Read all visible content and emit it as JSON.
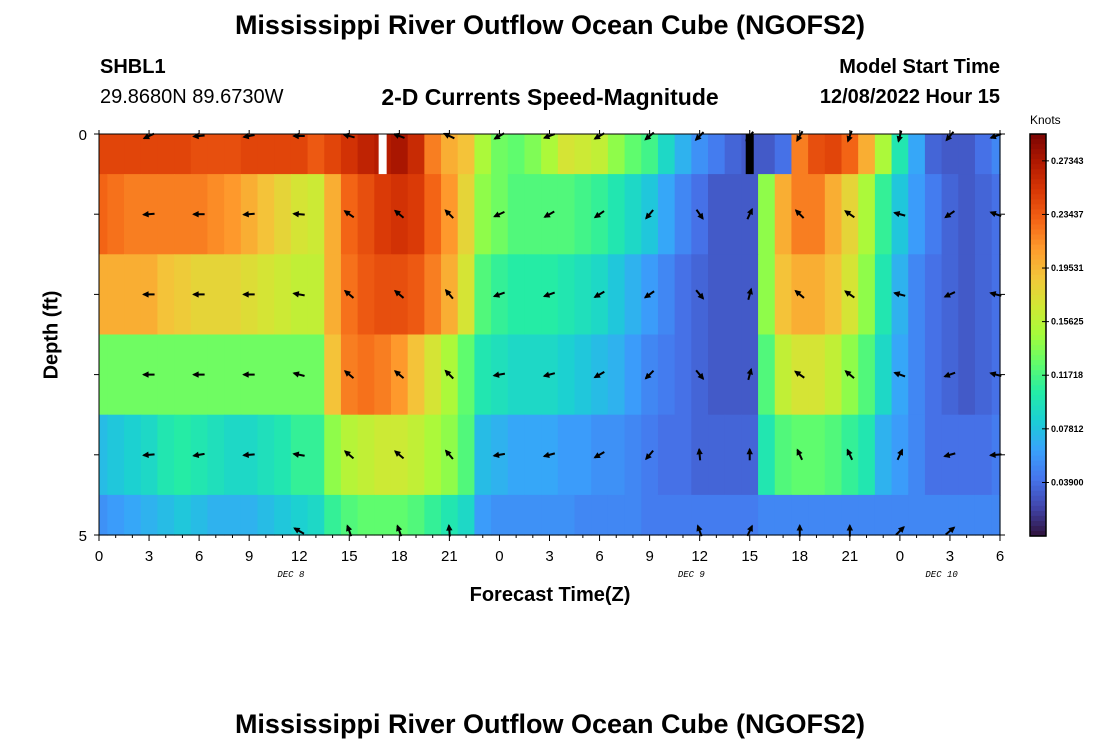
{
  "header": {
    "title": "Mississippi River Outflow Ocean Cube (NGOFS2)",
    "station_id": "SHBL1",
    "coordinates": "29.8680N  89.6730W",
    "plot_subtitle": "2-D Currents Speed-Magnitude",
    "model_start_label": "Model Start Time",
    "model_start_value": "12/08/2022 Hour 15"
  },
  "footer": {
    "title": "Mississippi River Outflow Ocean Cube (NGOFS2)"
  },
  "chart_data": {
    "type": "heatmap",
    "title": "2-D Currents Speed-Magnitude",
    "xlabel": "Forecast Time(Z)",
    "ylabel": "Depth (ft)",
    "colorbar_label": "Knots",
    "x_tick_labels": [
      "0",
      "3",
      "6",
      "9",
      "12",
      "15",
      "18",
      "21",
      "0",
      "3",
      "6",
      "9",
      "12",
      "15",
      "18",
      "21",
      "0",
      "3",
      "6"
    ],
    "x_day_labels": [
      {
        "label": "DEC 8",
        "hour": 11.5
      },
      {
        "label": "DEC 9",
        "hour": 35.5
      },
      {
        "label": "DEC 10",
        "hour": 50.5
      }
    ],
    "y_tick_labels": [
      {
        "depth": 0,
        "label": "0"
      },
      {
        "depth": 5,
        "label": "5"
      }
    ],
    "depth_range": [
      0,
      5
    ],
    "hour_range": [
      0,
      54
    ],
    "colorbar_range": [
      0.0,
      0.293
    ],
    "colorbar_ticks": [
      "0.03900",
      "0.07812",
      "0.11718",
      "0.15625",
      "0.19531",
      "0.23437",
      "0.27343"
    ],
    "colormap": [
      "#30123b",
      "#4145ab",
      "#4675ed",
      "#39a2fc",
      "#1bcfd4",
      "#24eca6",
      "#61fc6c",
      "#a4fc3b",
      "#d1e834",
      "#f3c63a",
      "#fe9b2d",
      "#f36315",
      "#d93806",
      "#b11901",
      "#7a0403"
    ],
    "hours": [
      0,
      1,
      2,
      3,
      4,
      5,
      6,
      7,
      8,
      9,
      10,
      11,
      12,
      13,
      14,
      15,
      16,
      17,
      18,
      19,
      20,
      21,
      22,
      23,
      24,
      25,
      26,
      27,
      28,
      29,
      30,
      31,
      32,
      33,
      34,
      35,
      36,
      37,
      38,
      39,
      40,
      41,
      42,
      43,
      44,
      45,
      46,
      47,
      48,
      49,
      50,
      51,
      52,
      53,
      54
    ],
    "depth_bins": [
      {
        "top": 0.0,
        "bottom": 0.5,
        "speeds": [
          0.245,
          0.245,
          0.245,
          0.245,
          0.245,
          0.245,
          0.24,
          0.24,
          0.24,
          0.245,
          0.245,
          0.245,
          0.245,
          0.235,
          0.245,
          0.255,
          0.265,
          0.27,
          0.275,
          0.26,
          0.22,
          0.2,
          0.19,
          0.15,
          0.13,
          0.125,
          0.135,
          0.15,
          0.17,
          0.165,
          0.16,
          0.14,
          0.125,
          0.115,
          0.09,
          0.07,
          0.055,
          0.045,
          0.035,
          0.03,
          0.03,
          0.04,
          0.22,
          0.24,
          0.245,
          0.23,
          0.2,
          0.15,
          0.1,
          0.065,
          0.035,
          0.03,
          0.03,
          0.04,
          0.05
        ]
      },
      {
        "top": 0.5,
        "bottom": 1.5,
        "speeds": [
          0.23,
          0.225,
          0.22,
          0.22,
          0.22,
          0.22,
          0.22,
          0.215,
          0.21,
          0.2,
          0.19,
          0.18,
          0.17,
          0.165,
          0.2,
          0.23,
          0.24,
          0.25,
          0.255,
          0.25,
          0.23,
          0.21,
          0.18,
          0.14,
          0.13,
          0.12,
          0.12,
          0.12,
          0.12,
          0.115,
          0.11,
          0.1,
          0.09,
          0.08,
          0.065,
          0.05,
          0.04,
          0.03,
          0.03,
          0.03,
          0.14,
          0.2,
          0.22,
          0.22,
          0.2,
          0.18,
          0.15,
          0.11,
          0.08,
          0.06,
          0.045,
          0.035,
          0.03,
          0.035,
          0.04
        ]
      },
      {
        "top": 1.5,
        "bottom": 2.5,
        "speeds": [
          0.2,
          0.2,
          0.2,
          0.2,
          0.19,
          0.185,
          0.18,
          0.18,
          0.18,
          0.175,
          0.17,
          0.165,
          0.16,
          0.16,
          0.2,
          0.225,
          0.235,
          0.24,
          0.24,
          0.235,
          0.22,
          0.2,
          0.17,
          0.12,
          0.11,
          0.105,
          0.105,
          0.105,
          0.1,
          0.095,
          0.09,
          0.08,
          0.07,
          0.06,
          0.05,
          0.04,
          0.035,
          0.03,
          0.03,
          0.03,
          0.14,
          0.19,
          0.2,
          0.2,
          0.19,
          0.17,
          0.14,
          0.1,
          0.07,
          0.05,
          0.04,
          0.035,
          0.03,
          0.035,
          0.04
        ]
      },
      {
        "top": 2.5,
        "bottom": 3.5,
        "speeds": [
          0.13,
          0.13,
          0.13,
          0.13,
          0.13,
          0.13,
          0.13,
          0.13,
          0.13,
          0.13,
          0.13,
          0.13,
          0.13,
          0.13,
          0.19,
          0.22,
          0.225,
          0.22,
          0.21,
          0.19,
          0.17,
          0.15,
          0.125,
          0.1,
          0.095,
          0.09,
          0.09,
          0.09,
          0.085,
          0.08,
          0.075,
          0.07,
          0.06,
          0.05,
          0.045,
          0.04,
          0.035,
          0.03,
          0.03,
          0.03,
          0.12,
          0.16,
          0.17,
          0.17,
          0.16,
          0.14,
          0.12,
          0.09,
          0.065,
          0.05,
          0.04,
          0.035,
          0.03,
          0.035,
          0.04
        ]
      },
      {
        "top": 3.5,
        "bottom": 4.5,
        "speeds": [
          0.075,
          0.08,
          0.085,
          0.09,
          0.1,
          0.105,
          0.1,
          0.095,
          0.09,
          0.09,
          0.095,
          0.1,
          0.11,
          0.11,
          0.14,
          0.155,
          0.16,
          0.165,
          0.165,
          0.16,
          0.15,
          0.14,
          0.12,
          0.075,
          0.07,
          0.065,
          0.065,
          0.065,
          0.06,
          0.06,
          0.055,
          0.055,
          0.05,
          0.045,
          0.04,
          0.04,
          0.035,
          0.035,
          0.035,
          0.035,
          0.1,
          0.12,
          0.125,
          0.125,
          0.12,
          0.11,
          0.1,
          0.07,
          0.06,
          0.05,
          0.04,
          0.04,
          0.04,
          0.04,
          0.045
        ]
      },
      {
        "top": 4.5,
        "bottom": 5.0,
        "speeds": [
          0.055,
          0.06,
          0.065,
          0.07,
          0.075,
          0.08,
          0.075,
          0.07,
          0.07,
          0.07,
          0.075,
          0.08,
          0.085,
          0.09,
          0.11,
          0.12,
          0.125,
          0.125,
          0.125,
          0.12,
          0.11,
          0.1,
          0.09,
          0.06,
          0.055,
          0.055,
          0.055,
          0.055,
          0.055,
          0.05,
          0.05,
          0.05,
          0.05,
          0.045,
          0.045,
          0.045,
          0.045,
          0.045,
          0.045,
          0.045,
          0.05,
          0.05,
          0.05,
          0.05,
          0.05,
          0.05,
          0.05,
          0.05,
          0.05,
          0.05,
          0.05,
          0.05,
          0.05,
          0.05,
          0.05
        ]
      }
    ],
    "missing_data": [
      {
        "hour": 17,
        "depth_top": 0.0,
        "depth_bottom": 0.5,
        "color": "#ffffff"
      },
      {
        "hour": 39,
        "depth_top": 0.0,
        "depth_bottom": 0.5,
        "color": "#000000"
      }
    ],
    "vector_hours": [
      3,
      6,
      9,
      12,
      15,
      18,
      21,
      24,
      27,
      30,
      33,
      36,
      39,
      42,
      45,
      48,
      51,
      54
    ],
    "vector_depths": [
      0.0,
      1.0,
      2.0,
      3.0,
      4.0,
      5.0
    ],
    "vector_directions_deg": [
      [
        205,
        185,
        190,
        180,
        165,
        160,
        155,
        210,
        200,
        210,
        220,
        225,
        230,
        240,
        250,
        255,
        230,
        200
      ],
      [
        185,
        180,
        185,
        175,
        145,
        140,
        135,
        205,
        210,
        215,
        230,
        305,
        65,
        135,
        145,
        165,
        215,
        160
      ],
      [
        180,
        180,
        180,
        170,
        140,
        140,
        130,
        200,
        200,
        210,
        215,
        310,
        75,
        140,
        145,
        165,
        205,
        165
      ],
      [
        180,
        180,
        180,
        165,
        140,
        140,
        135,
        190,
        195,
        210,
        225,
        310,
        75,
        145,
        140,
        160,
        200,
        165
      ],
      [
        185,
        190,
        185,
        170,
        140,
        140,
        130,
        190,
        195,
        210,
        230,
        95,
        90,
        115,
        115,
        65,
        195,
        185
      ],
      [
        null,
        null,
        null,
        150,
        110,
        110,
        95,
        null,
        null,
        null,
        null,
        110,
        65,
        90,
        90,
        45,
        40,
        null
      ]
    ]
  }
}
